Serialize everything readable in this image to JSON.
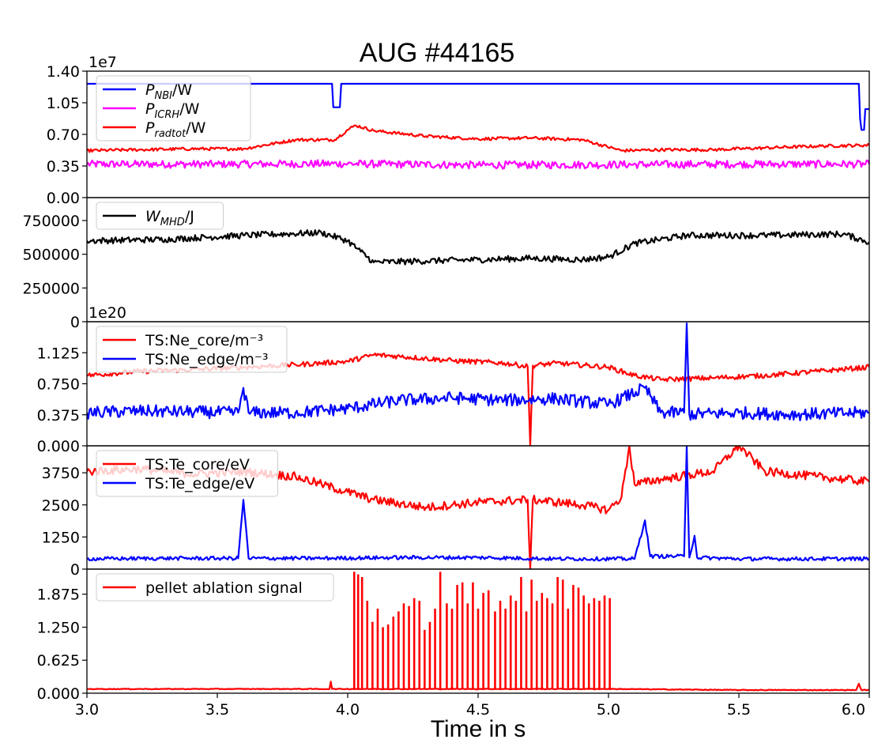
{
  "chart_data": {
    "title": "AUG #44165",
    "xlabel": "Time in s",
    "x_ticks": [
      "3.0",
      "3.5",
      "4.0",
      "4.5",
      "5.0",
      "5.5",
      "6.0"
    ],
    "xlim": [
      3.0,
      6.0
    ],
    "colors": {
      "red": "#ff0000",
      "blue": "#0000ff",
      "magenta": "#ff00ff",
      "black": "#000000"
    },
    "panels": [
      {
        "type": "line",
        "ylim": [
          0,
          14000000
        ],
        "y_ticks": [
          "0.00",
          "0.35",
          "0.70",
          "1.05",
          "1.40"
        ],
        "offset_label": "1e7",
        "series": [
          {
            "name": "P_NBI/W",
            "label_base": "P",
            "label_sub": "NBI",
            "label_unit": "/W",
            "color": "#0000ff",
            "x": [
              3.0,
              3.94,
              3.94,
              3.97,
              3.97,
              5.96,
              5.96,
              5.97,
              5.98,
              5.98,
              6.0
            ],
            "y": [
              12600000,
              12600000,
              10000000,
              10000000,
              12600000,
              12600000,
              10000000,
              7500000,
              7500000,
              9800000,
              9800000
            ]
          },
          {
            "name": "P_ICRH/W",
            "label_base": "P",
            "label_sub": "ICRH",
            "label_unit": "/W",
            "color": "#ff00ff",
            "x": [
              3.0,
              3.5,
              4.0,
              4.5,
              5.0,
              5.5,
              6.0
            ],
            "y": [
              3700000,
              3700000,
              3750000,
              3600000,
              3650000,
              3700000,
              3700000
            ]
          },
          {
            "name": "P_radtot/W",
            "label_base": "P",
            "label_sub": "radtot",
            "label_unit": "/W",
            "color": "#ff0000",
            "x": [
              3.0,
              3.2,
              3.4,
              3.6,
              3.8,
              3.95,
              4.0,
              4.03,
              4.1,
              4.3,
              4.5,
              4.7,
              4.9,
              5.05,
              5.2,
              5.4,
              5.6,
              5.8,
              6.0
            ],
            "y": [
              5200000,
              5300000,
              5400000,
              5400000,
              6400000,
              6400000,
              7500000,
              8000000,
              7400000,
              6800000,
              6500000,
              6600000,
              6400000,
              5200000,
              5300000,
              5300000,
              5500000,
              5700000,
              5800000
            ]
          }
        ]
      },
      {
        "type": "line",
        "ylim": [
          0,
          920000
        ],
        "y_ticks": [
          "0",
          "250000",
          "500000",
          "750000"
        ],
        "series": [
          {
            "name": "W_MHD/J",
            "label_base": "W",
            "label_sub": "MHD",
            "label_unit": "/J",
            "color": "#000000",
            "x": [
              3.0,
              3.3,
              3.6,
              3.9,
              4.0,
              4.05,
              4.1,
              4.3,
              4.5,
              4.7,
              4.9,
              5.0,
              5.1,
              5.3,
              5.6,
              5.9,
              6.0
            ],
            "y": [
              600000,
              610000,
              640000,
              660000,
              600000,
              520000,
              440000,
              450000,
              460000,
              470000,
              460000,
              480000,
              580000,
              640000,
              640000,
              650000,
              590000
            ]
          }
        ]
      },
      {
        "type": "line",
        "ylim": [
          0,
          150000000000000000000
        ],
        "y_ticks": [
          "0.000",
          "0.375",
          "0.750",
          "1.125"
        ],
        "offset_label": "1e20",
        "series": [
          {
            "name": "TS:Ne_core/m⁻³",
            "color": "#ff0000",
            "x": [
              3.0,
              3.2,
              3.4,
              3.6,
              3.8,
              4.0,
              4.1,
              4.2,
              4.4,
              4.6,
              4.69,
              4.7,
              4.71,
              4.8,
              5.0,
              5.1,
              5.2,
              5.4,
              5.6,
              5.8,
              6.0
            ],
            "y": [
              85000000000000000000,
              90000000000000000000,
              92000000000000000000,
              95000000000000000000,
              98000000000000000000,
              102000000000000000000,
              110000000000000000000,
              108000000000000000000,
              103000000000000000000,
              100000000000000000000,
              96000000000000000000,
              0,
              97000000000000000000,
              100000000000000000000,
              95000000000000000000,
              85000000000000000000,
              80000000000000000000,
              82000000000000000000,
              85000000000000000000,
              90000000000000000000,
              95000000000000000000
            ]
          },
          {
            "name": "TS:Ne_edge/m⁻³",
            "color": "#0000ff",
            "x": [
              3.0,
              3.2,
              3.4,
              3.58,
              3.6,
              3.62,
              3.8,
              4.0,
              4.2,
              4.4,
              4.6,
              4.8,
              5.0,
              5.14,
              5.2,
              5.29,
              5.3,
              5.31,
              5.5,
              5.7,
              6.0
            ],
            "y": [
              40000000000000000000,
              42000000000000000000,
              41000000000000000000,
              40000000000000000000,
              70000000000000000000,
              40000000000000000000,
              40000000000000000000,
              45000000000000000000,
              55000000000000000000,
              58000000000000000000,
              55000000000000000000,
              57000000000000000000,
              50000000000000000000,
              70000000000000000000,
              40000000000000000000,
              40000000000000000000,
              148000000000000000000,
              38000000000000000000,
              40000000000000000000,
              38000000000000000000,
              40000000000000000000
            ]
          }
        ]
      },
      {
        "type": "line",
        "ylim": [
          0,
          4800
        ],
        "y_ticks": [
          "0",
          "1250",
          "2500",
          "3750"
        ],
        "series": [
          {
            "name": "TS:Te_core/eV",
            "color": "#ff0000",
            "x": [
              3.0,
              3.2,
              3.4,
              3.6,
              3.8,
              3.9,
              4.0,
              4.1,
              4.3,
              4.5,
              4.69,
              4.7,
              4.71,
              4.9,
              5.0,
              5.05,
              5.08,
              5.1,
              5.2,
              5.4,
              5.5,
              5.6,
              5.8,
              6.0
            ],
            "y": [
              3800,
              3900,
              3700,
              3800,
              3600,
              3300,
              3000,
              2700,
              2400,
              2600,
              2700,
              0,
              2700,
              2500,
              2300,
              2800,
              4800,
              3300,
              3500,
              3800,
              4800,
              3800,
              3600,
              3400
            ]
          },
          {
            "name": "TS:Te_edge/eV",
            "color": "#0000ff",
            "x": [
              3.0,
              3.3,
              3.58,
              3.6,
              3.62,
              3.9,
              4.2,
              4.5,
              4.8,
              5.1,
              5.14,
              5.16,
              5.29,
              5.3,
              5.31,
              5.33,
              5.34,
              5.5,
              5.7,
              6.0
            ],
            "y": [
              400,
              420,
              420,
              2700,
              420,
              420,
              450,
              450,
              400,
              400,
              1900,
              500,
              500,
              4800,
              450,
              1300,
              450,
              400,
              400,
              400
            ]
          }
        ]
      },
      {
        "type": "line",
        "ylim": [
          0,
          2.35
        ],
        "y_ticks": [
          "0.000",
          "0.625",
          "1.250",
          "1.875"
        ],
        "series": [
          {
            "name": "pellet ablation signal",
            "color": "#ff0000",
            "x": [
              3.0,
              3.93,
              3.935,
              3.94,
              4.02,
              5.02,
              5.5,
              5.95,
              5.96,
              5.97,
              6.0
            ],
            "y": [
              0.08,
              0.08,
              0.22,
              0.08,
              0.08,
              0.08,
              0.06,
              0.06,
              0.18,
              0.06,
              0.06
            ],
            "spike_x": [
              4.025,
              4.04,
              4.055,
              4.075,
              4.095,
              4.115,
              4.135,
              4.155,
              4.175,
              4.195,
              4.215,
              4.235,
              4.255,
              4.275,
              4.295,
              4.315,
              4.335,
              4.355,
              4.38,
              4.4,
              4.42,
              4.44,
              4.46,
              4.48,
              4.5,
              4.52,
              4.54,
              4.565,
              4.585,
              4.605,
              4.625,
              4.645,
              4.665,
              4.685,
              4.705,
              4.725,
              4.745,
              4.765,
              4.785,
              4.805,
              4.825,
              4.845,
              4.865,
              4.885,
              4.905,
              4.925,
              4.945,
              4.965,
              4.985,
              5.005
            ],
            "spike_y": [
              2.3,
              2.25,
              2.2,
              1.75,
              1.35,
              1.6,
              1.25,
              1.3,
              1.45,
              1.55,
              1.7,
              1.65,
              1.8,
              1.75,
              1.2,
              1.35,
              1.6,
              2.3,
              1.7,
              1.6,
              2.05,
              2.1,
              1.7,
              2.1,
              1.6,
              1.9,
              1.95,
              1.55,
              1.75,
              1.6,
              1.85,
              1.75,
              2.2,
              1.55,
              2.15,
              1.75,
              1.9,
              1.8,
              1.7,
              2.2,
              2.15,
              1.6,
              2.05,
              2.0,
              1.85,
              1.7,
              1.8,
              1.75,
              1.85,
              1.8
            ]
          }
        ]
      }
    ]
  }
}
